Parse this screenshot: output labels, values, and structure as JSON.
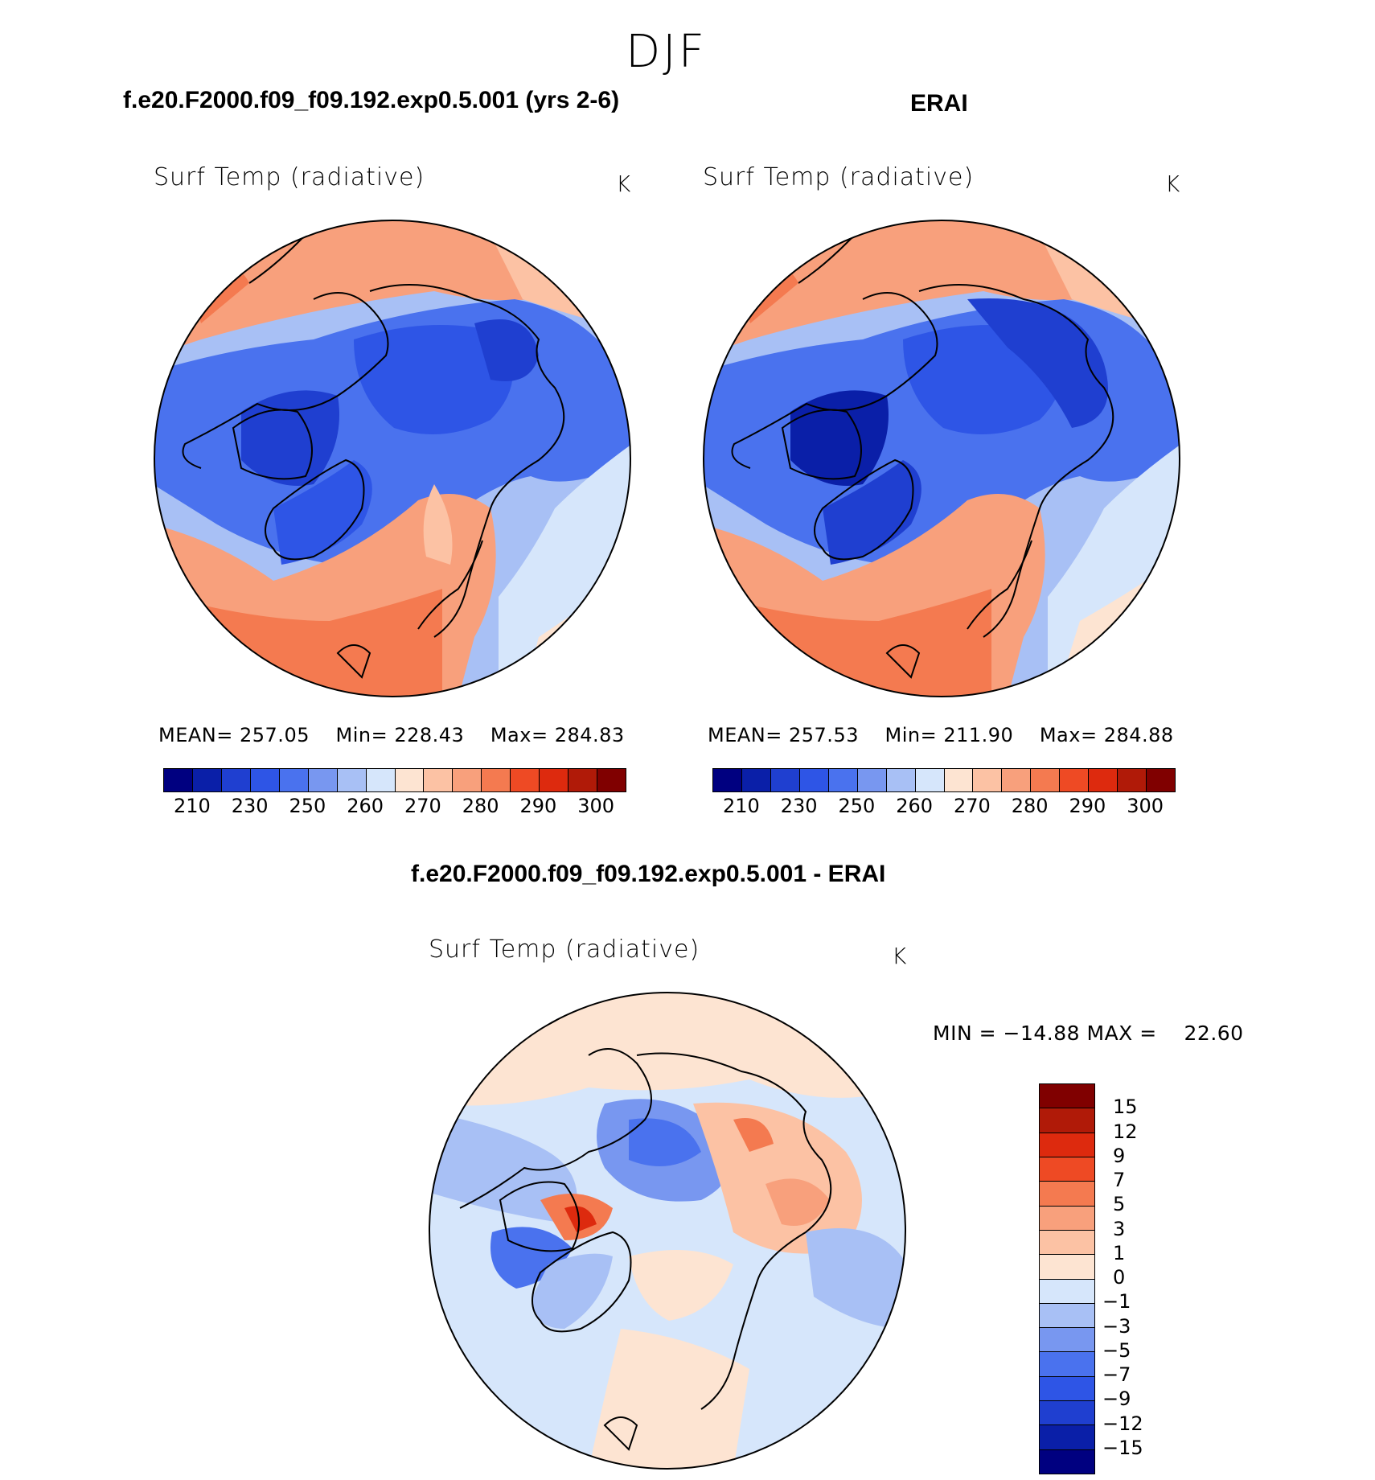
{
  "season": "DJF",
  "panels": [
    {
      "case_title": "f.e20.F2000.f09_f09.192.exp0.5.001 (yrs 2-6)",
      "plot_title": "Surf Temp (radiative)",
      "units": "K",
      "stats": {
        "mean_label": "MEAN=",
        "mean": "257.05",
        "min_label": "Min=",
        "min": "228.43",
        "max_label": "Max=",
        "max": "284.83"
      }
    },
    {
      "case_title": "ERAI",
      "plot_title": "Surf Temp (radiative)",
      "units": "K",
      "stats": {
        "mean_label": "MEAN=",
        "mean": "257.53",
        "min_label": "Min=",
        "min": "211.90",
        "max_label": "Max=",
        "max": "284.88"
      }
    }
  ],
  "diff_panel": {
    "case_title": "f.e20.F2000.f09_f09.192.exp0.5.001 - ERAI",
    "plot_title": "Surf Temp (radiative)",
    "units": "K",
    "min_label": "MIN",
    "min_value": "−14.88",
    "max_label": "MAX",
    "max_value": "22.60"
  },
  "chart_data": [
    {
      "type": "heatmap",
      "projection": "north polar stereographic",
      "title": "Surf Temp (radiative)",
      "units": "K",
      "stats": {
        "mean": 257.05,
        "min": 228.43,
        "max": 284.83
      },
      "colorbar_ticks": [
        "210",
        "230",
        "250",
        "260",
        "270",
        "280",
        "290",
        "300"
      ],
      "colorbar_colors": [
        "#000080",
        "#0a1fa8",
        "#1f3fd0",
        "#2e55e6",
        "#4a72ee",
        "#7897f0",
        "#a8c0f5",
        "#d6e6fb",
        "#fde4d2",
        "#fcc2a4",
        "#f8a07c",
        "#f47a50",
        "#ee4a24",
        "#dd2a0e",
        "#b01a08",
        "#800000"
      ]
    },
    {
      "type": "heatmap",
      "projection": "north polar stereographic",
      "title": "Surf Temp (radiative)",
      "units": "K",
      "stats": {
        "mean": 257.53,
        "min": 211.9,
        "max": 284.88
      },
      "colorbar_ticks": [
        "210",
        "230",
        "250",
        "260",
        "270",
        "280",
        "290",
        "300"
      ],
      "colorbar_colors": [
        "#000080",
        "#0a1fa8",
        "#1f3fd0",
        "#2e55e6",
        "#4a72ee",
        "#7897f0",
        "#a8c0f5",
        "#d6e6fb",
        "#fde4d2",
        "#fcc2a4",
        "#f8a07c",
        "#f47a50",
        "#ee4a24",
        "#dd2a0e",
        "#b01a08",
        "#800000"
      ]
    },
    {
      "type": "heatmap",
      "projection": "north polar stereographic",
      "title": "Surf Temp (radiative)",
      "units": "K",
      "stats": {
        "min": -14.88,
        "max": 22.6
      },
      "colorbar_ticks": [
        "15",
        "12",
        "9",
        "7",
        "5",
        "3",
        "1",
        "0",
        "−1",
        "−3",
        "−5",
        "−7",
        "−9",
        "−12",
        "−15"
      ],
      "colorbar_colors": [
        "#800000",
        "#b01a08",
        "#dd2a0e",
        "#ee4a24",
        "#f47a50",
        "#f8a07c",
        "#fcc2a4",
        "#fde4d2",
        "#d6e6fb",
        "#a8c0f5",
        "#7897f0",
        "#4a72ee",
        "#2e55e6",
        "#1f3fd0",
        "#0a1fa8",
        "#000080"
      ]
    }
  ]
}
